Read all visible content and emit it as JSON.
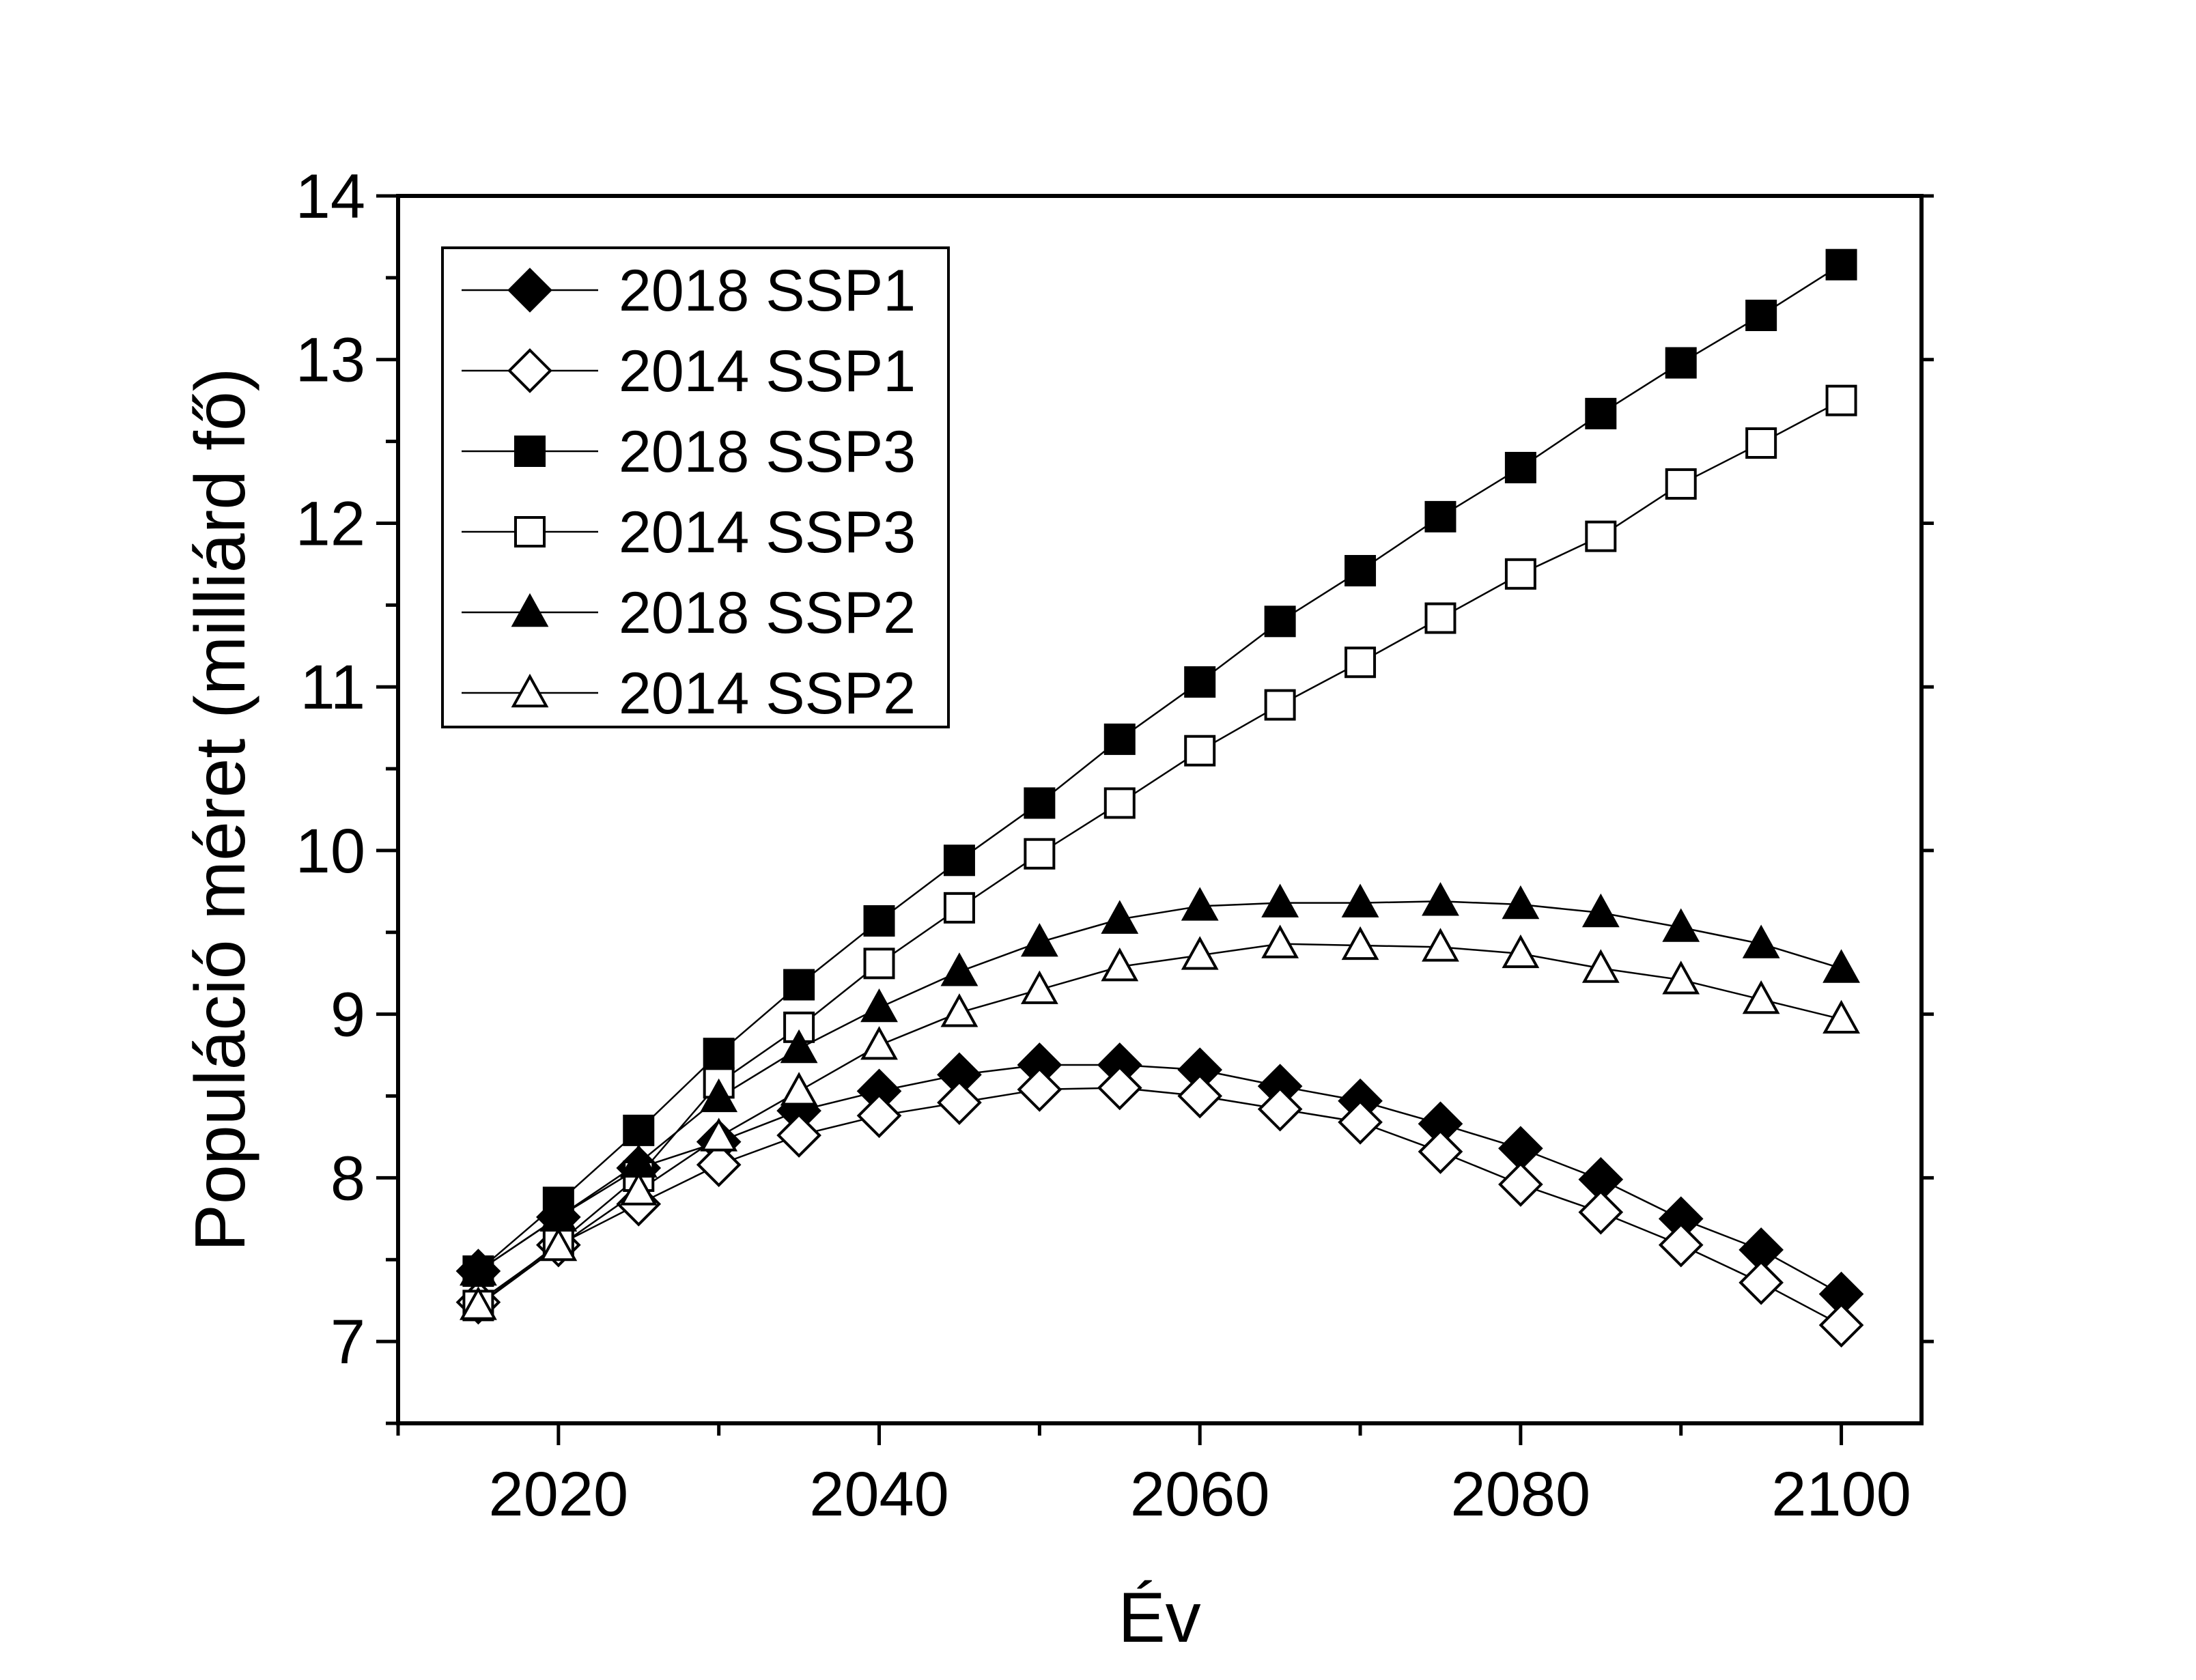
{
  "chart_data": {
    "type": "line",
    "xlabel": "Év",
    "ylabel": "Populáció méret (milliárd fő)",
    "xlim": [
      2010,
      2105
    ],
    "ylim": [
      6.5,
      14
    ],
    "xticks": [
      2020,
      2040,
      2060,
      2080,
      2100
    ],
    "yticks": [
      7,
      8,
      9,
      10,
      11,
      12,
      13,
      14
    ],
    "grid": false,
    "legend_position": "top-left",
    "x": [
      2015,
      2020,
      2025,
      2030,
      2035,
      2040,
      2045,
      2050,
      2055,
      2060,
      2065,
      2070,
      2075,
      2080,
      2085,
      2090,
      2095,
      2100
    ],
    "series": [
      {
        "name": "2018 SSP1",
        "marker": "diamond",
        "filled": true,
        "values": [
          7.43,
          7.76,
          8.06,
          8.22,
          8.41,
          8.53,
          8.63,
          8.69,
          8.69,
          8.66,
          8.56,
          8.47,
          8.33,
          8.18,
          7.99,
          7.75,
          7.56,
          7.29
        ]
      },
      {
        "name": "2014 SSP1",
        "marker": "diamond",
        "filled": false,
        "values": [
          7.24,
          7.59,
          7.84,
          8.08,
          8.26,
          8.38,
          8.46,
          8.54,
          8.55,
          8.5,
          8.42,
          8.34,
          8.16,
          7.96,
          7.79,
          7.59,
          7.36,
          7.1
        ]
      },
      {
        "name": "2018 SSP3",
        "marker": "square",
        "filled": true,
        "values": [
          7.43,
          7.85,
          8.29,
          8.76,
          9.18,
          9.57,
          9.94,
          10.29,
          10.68,
          11.03,
          11.4,
          11.71,
          12.04,
          12.34,
          12.67,
          12.98,
          13.27,
          13.58
        ]
      },
      {
        "name": "2014 SSP3",
        "marker": "square",
        "filled": false,
        "values": [
          7.22,
          7.6,
          8.01,
          8.58,
          8.92,
          9.31,
          9.65,
          9.98,
          10.29,
          10.61,
          10.89,
          11.15,
          11.42,
          11.69,
          11.92,
          12.24,
          12.49,
          12.75
        ]
      },
      {
        "name": "2018 SSP2",
        "marker": "triangle",
        "filled": true,
        "values": [
          7.43,
          7.76,
          8.09,
          8.49,
          8.79,
          9.04,
          9.26,
          9.44,
          9.58,
          9.66,
          9.68,
          9.68,
          9.69,
          9.67,
          9.62,
          9.53,
          9.43,
          9.28
        ]
      },
      {
        "name": "2014 SSP2",
        "marker": "triangle",
        "filled": false,
        "values": [
          7.22,
          7.58,
          7.92,
          8.25,
          8.53,
          8.81,
          9.01,
          9.15,
          9.29,
          9.36,
          9.43,
          9.42,
          9.41,
          9.37,
          9.28,
          9.21,
          9.09,
          8.97
        ]
      }
    ]
  }
}
